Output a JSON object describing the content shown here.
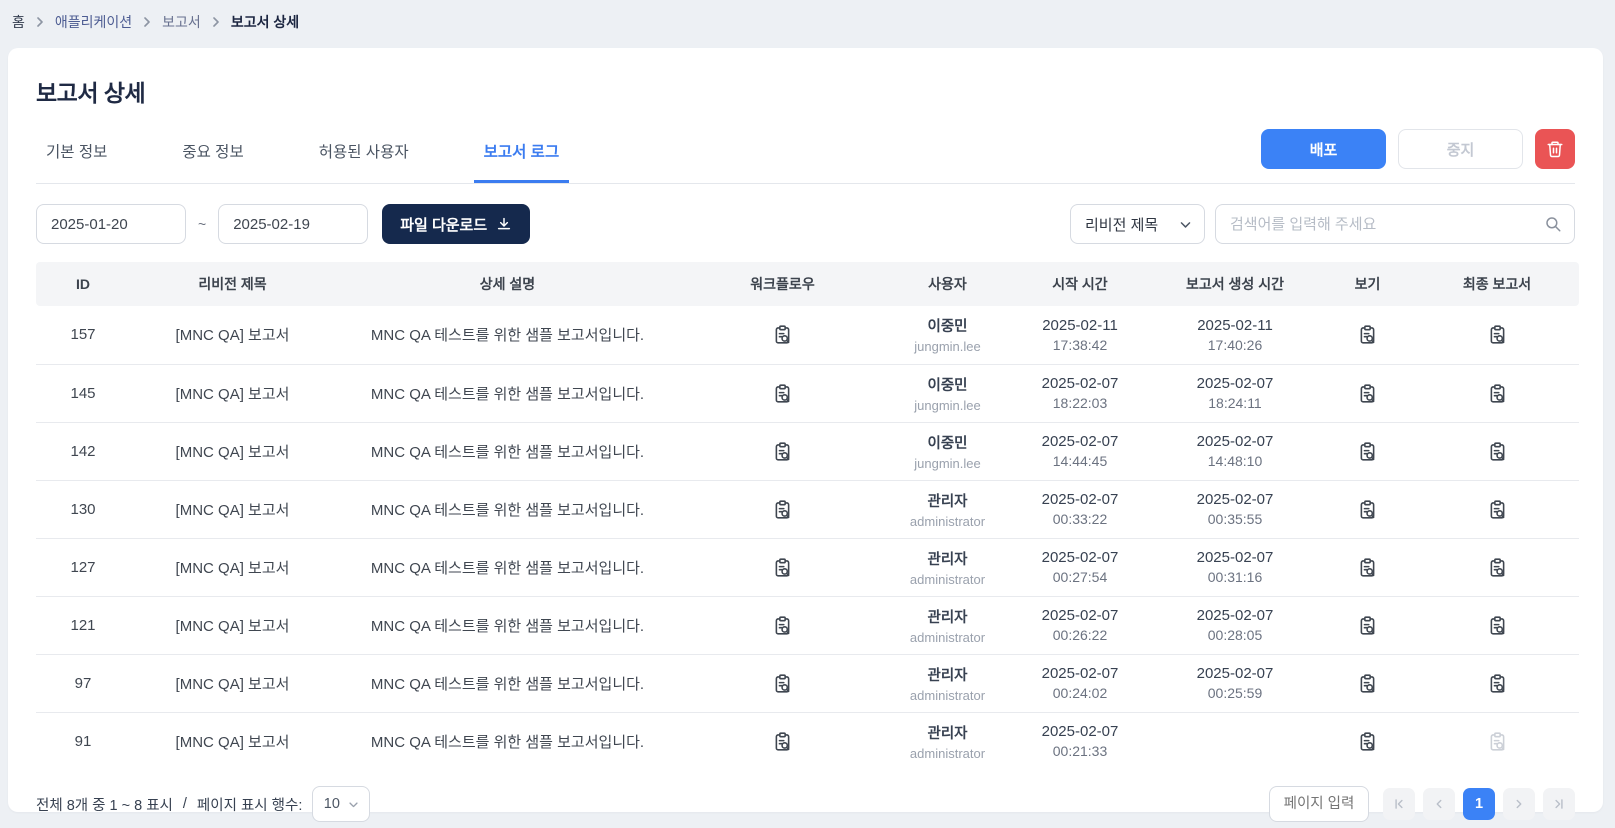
{
  "breadcrumb": {
    "home": "홈",
    "application": "애플리케이션",
    "reports": "보고서",
    "current": "보고서 상세"
  },
  "page": {
    "title": "보고서 상세"
  },
  "tabs": [
    {
      "label": "기본 정보",
      "active": false
    },
    {
      "label": "중요 정보",
      "active": false
    },
    {
      "label": "허용된 사용자",
      "active": false
    },
    {
      "label": "보고서 로그",
      "active": true
    }
  ],
  "actions": {
    "deploy_label": "배포",
    "stop_label": "중지",
    "delete_icon": "trash-icon"
  },
  "filters": {
    "date_start": "2025-01-20",
    "tilde": "~",
    "date_end": "2025-02-19",
    "download_label": "파일 다운로드",
    "download_icon": "download-icon",
    "field_select_value": "리비전 제목",
    "field_select_icon": "chevron-down-icon",
    "search_placeholder": "검색어를 입력해 주세요",
    "search_icon": "search-icon"
  },
  "table": {
    "columns": [
      "ID",
      "리비전 제목",
      "상세 설명",
      "워크플로우",
      "사용자",
      "시작 시간",
      "보고서 생성 시간",
      "보기",
      "최종 보고서"
    ],
    "row_icons": {
      "workflow": "clipboard-search-icon",
      "view": "clipboard-search-icon",
      "final_report": "clipboard-search-icon"
    },
    "rows": [
      {
        "id": "157",
        "revision": "[MNC QA] 보고서",
        "description": "MNC QA 테스트를 위한 샘플 보고서입니다.",
        "user_name": "이중민",
        "user_account": "jungmin.lee",
        "start_date": "2025-02-11",
        "start_time": "17:38:42",
        "generated_date": "2025-02-11",
        "generated_time": "17:40:26",
        "final_report_available": true
      },
      {
        "id": "145",
        "revision": "[MNC QA] 보고서",
        "description": "MNC QA 테스트를 위한 샘플 보고서입니다.",
        "user_name": "이중민",
        "user_account": "jungmin.lee",
        "start_date": "2025-02-07",
        "start_time": "18:22:03",
        "generated_date": "2025-02-07",
        "generated_time": "18:24:11",
        "final_report_available": true
      },
      {
        "id": "142",
        "revision": "[MNC QA] 보고서",
        "description": "MNC QA 테스트를 위한 샘플 보고서입니다.",
        "user_name": "이중민",
        "user_account": "jungmin.lee",
        "start_date": "2025-02-07",
        "start_time": "14:44:45",
        "generated_date": "2025-02-07",
        "generated_time": "14:48:10",
        "final_report_available": true
      },
      {
        "id": "130",
        "revision": "[MNC QA] 보고서",
        "description": "MNC QA 테스트를 위한 샘플 보고서입니다.",
        "user_name": "관리자",
        "user_account": "administrator",
        "start_date": "2025-02-07",
        "start_time": "00:33:22",
        "generated_date": "2025-02-07",
        "generated_time": "00:35:55",
        "final_report_available": true
      },
      {
        "id": "127",
        "revision": "[MNC QA] 보고서",
        "description": "MNC QA 테스트를 위한 샘플 보고서입니다.",
        "user_name": "관리자",
        "user_account": "administrator",
        "start_date": "2025-02-07",
        "start_time": "00:27:54",
        "generated_date": "2025-02-07",
        "generated_time": "00:31:16",
        "final_report_available": true
      },
      {
        "id": "121",
        "revision": "[MNC QA] 보고서",
        "description": "MNC QA 테스트를 위한 샘플 보고서입니다.",
        "user_name": "관리자",
        "user_account": "administrator",
        "start_date": "2025-02-07",
        "start_time": "00:26:22",
        "generated_date": "2025-02-07",
        "generated_time": "00:28:05",
        "final_report_available": true
      },
      {
        "id": "97",
        "revision": "[MNC QA] 보고서",
        "description": "MNC QA 테스트를 위한 샘플 보고서입니다.",
        "user_name": "관리자",
        "user_account": "administrator",
        "start_date": "2025-02-07",
        "start_time": "00:24:02",
        "generated_date": "2025-02-07",
        "generated_time": "00:25:59",
        "final_report_available": true
      },
      {
        "id": "91",
        "revision": "[MNC QA] 보고서",
        "description": "MNC QA 테스트를 위한 샘플 보고서입니다.",
        "user_name": "관리자",
        "user_account": "administrator",
        "start_date": "2025-02-07",
        "start_time": "00:21:33",
        "generated_date": "",
        "generated_time": "",
        "final_report_available": false
      }
    ]
  },
  "footer": {
    "summary": "전체 8개 중 1 ~ 8 표시",
    "separator": "/",
    "rows_per_page_label": "페이지 표시 행수:",
    "rows_per_page_value": "10",
    "page_input_placeholder": "페이지 입력",
    "current_page": "1",
    "pager_icons": [
      "first-page-icon",
      "prev-page-icon",
      "next-page-icon",
      "last-page-icon"
    ]
  },
  "colors": {
    "accent_blue": "#3b82f6",
    "navy": "#15294d",
    "danger_red": "#ea5455",
    "page_background": "#edf0f4",
    "table_header_bg": "#f4f5f7"
  }
}
